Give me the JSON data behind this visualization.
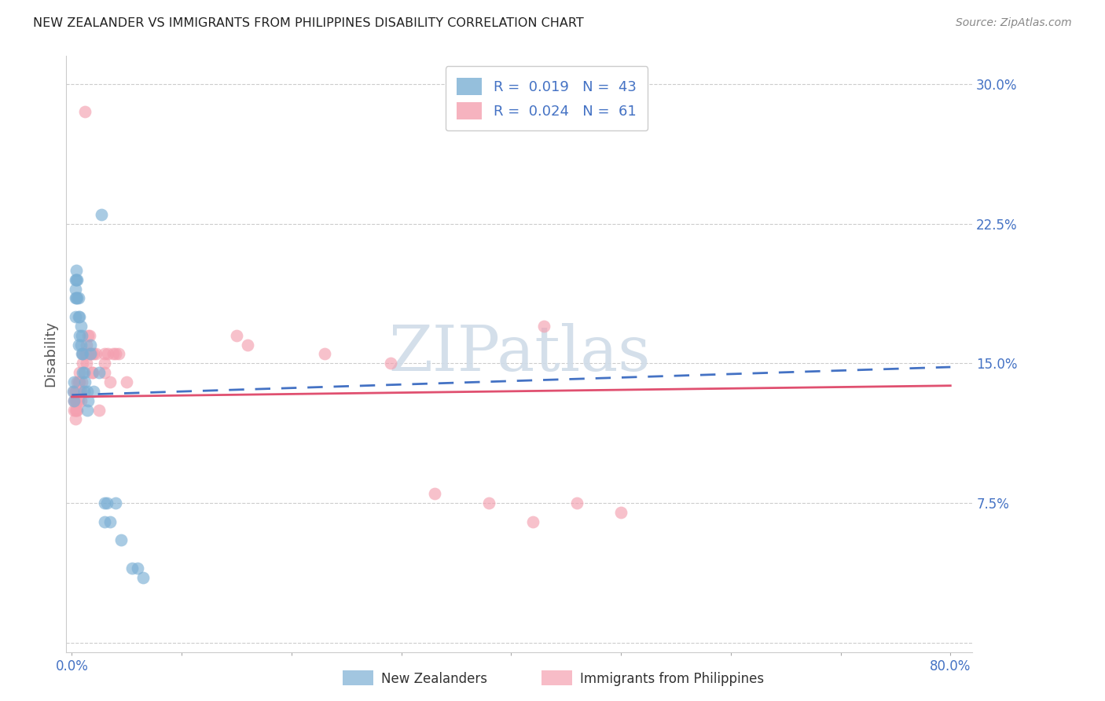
{
  "title": "NEW ZEALANDER VS IMMIGRANTS FROM PHILIPPINES DISABILITY CORRELATION CHART",
  "source": "Source: ZipAtlas.com",
  "ylabel": "Disability",
  "yticks": [
    0.0,
    0.075,
    0.15,
    0.225,
    0.3
  ],
  "ytick_labels": [
    "",
    "7.5%",
    "15.0%",
    "22.5%",
    "30.0%"
  ],
  "ylim": [
    -0.005,
    0.315
  ],
  "xlim": [
    -0.005,
    0.82
  ],
  "nz_color": "#7BAFD4",
  "ph_color": "#F4A0B0",
  "nz_line_color": "#4472C4",
  "ph_line_color": "#E05070",
  "watermark_color": "#D0DCE8",
  "nz_points": [
    [
      0.001,
      0.135
    ],
    [
      0.002,
      0.14
    ],
    [
      0.002,
      0.13
    ],
    [
      0.003,
      0.195
    ],
    [
      0.003,
      0.19
    ],
    [
      0.003,
      0.185
    ],
    [
      0.003,
      0.175
    ],
    [
      0.004,
      0.2
    ],
    [
      0.004,
      0.195
    ],
    [
      0.004,
      0.185
    ],
    [
      0.005,
      0.195
    ],
    [
      0.005,
      0.185
    ],
    [
      0.006,
      0.185
    ],
    [
      0.006,
      0.175
    ],
    [
      0.006,
      0.16
    ],
    [
      0.007,
      0.175
    ],
    [
      0.007,
      0.165
    ],
    [
      0.008,
      0.17
    ],
    [
      0.008,
      0.16
    ],
    [
      0.009,
      0.165
    ],
    [
      0.009,
      0.155
    ],
    [
      0.01,
      0.155
    ],
    [
      0.01,
      0.145
    ],
    [
      0.011,
      0.145
    ],
    [
      0.011,
      0.135
    ],
    [
      0.012,
      0.14
    ],
    [
      0.014,
      0.135
    ],
    [
      0.014,
      0.125
    ],
    [
      0.015,
      0.13
    ],
    [
      0.017,
      0.16
    ],
    [
      0.017,
      0.155
    ],
    [
      0.02,
      0.135
    ],
    [
      0.025,
      0.145
    ],
    [
      0.027,
      0.23
    ],
    [
      0.03,
      0.075
    ],
    [
      0.03,
      0.065
    ],
    [
      0.032,
      0.075
    ],
    [
      0.035,
      0.065
    ],
    [
      0.04,
      0.075
    ],
    [
      0.045,
      0.055
    ],
    [
      0.055,
      0.04
    ],
    [
      0.06,
      0.04
    ],
    [
      0.065,
      0.035
    ]
  ],
  "ph_points": [
    [
      0.002,
      0.135
    ],
    [
      0.002,
      0.13
    ],
    [
      0.002,
      0.125
    ],
    [
      0.003,
      0.135
    ],
    [
      0.003,
      0.13
    ],
    [
      0.003,
      0.125
    ],
    [
      0.003,
      0.12
    ],
    [
      0.004,
      0.135
    ],
    [
      0.004,
      0.13
    ],
    [
      0.004,
      0.125
    ],
    [
      0.005,
      0.14
    ],
    [
      0.005,
      0.135
    ],
    [
      0.005,
      0.13
    ],
    [
      0.005,
      0.125
    ],
    [
      0.006,
      0.14
    ],
    [
      0.006,
      0.135
    ],
    [
      0.006,
      0.13
    ],
    [
      0.007,
      0.145
    ],
    [
      0.007,
      0.14
    ],
    [
      0.007,
      0.135
    ],
    [
      0.008,
      0.135
    ],
    [
      0.008,
      0.13
    ],
    [
      0.009,
      0.14
    ],
    [
      0.01,
      0.155
    ],
    [
      0.01,
      0.15
    ],
    [
      0.012,
      0.155
    ],
    [
      0.013,
      0.16
    ],
    [
      0.013,
      0.155
    ],
    [
      0.013,
      0.15
    ],
    [
      0.015,
      0.165
    ],
    [
      0.015,
      0.155
    ],
    [
      0.016,
      0.165
    ],
    [
      0.017,
      0.155
    ],
    [
      0.018,
      0.155
    ],
    [
      0.018,
      0.145
    ],
    [
      0.019,
      0.145
    ],
    [
      0.02,
      0.155
    ],
    [
      0.022,
      0.155
    ],
    [
      0.025,
      0.125
    ],
    [
      0.03,
      0.155
    ],
    [
      0.03,
      0.15
    ],
    [
      0.03,
      0.145
    ],
    [
      0.033,
      0.155
    ],
    [
      0.035,
      0.14
    ],
    [
      0.038,
      0.155
    ],
    [
      0.04,
      0.155
    ],
    [
      0.043,
      0.155
    ],
    [
      0.05,
      0.14
    ],
    [
      0.012,
      0.285
    ],
    [
      0.43,
      0.17
    ],
    [
      0.15,
      0.165
    ],
    [
      0.16,
      0.16
    ],
    [
      0.23,
      0.155
    ],
    [
      0.29,
      0.15
    ],
    [
      0.33,
      0.08
    ],
    [
      0.38,
      0.075
    ],
    [
      0.42,
      0.065
    ],
    [
      0.46,
      0.075
    ],
    [
      0.5,
      0.07
    ]
  ],
  "nz_trend": [
    0.0,
    0.8,
    0.133,
    0.148
  ],
  "ph_trend": [
    0.0,
    0.8,
    0.132,
    0.138
  ]
}
